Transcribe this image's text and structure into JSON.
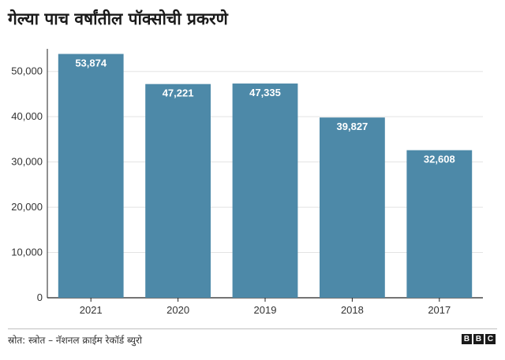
{
  "title": "गेल्या पाच वर्षांतील पॉक्सोची प्रकरणे",
  "source": "स्रोत: स्त्रोत – नॅशनल क्राईम रेकॉर्ड ब्युरो",
  "logo": [
    "B",
    "B",
    "C"
  ],
  "colors": {
    "bar": "#4d89a8",
    "grid": "#e3e3e3",
    "axis": "#222222"
  },
  "chart_data": {
    "type": "bar",
    "categories": [
      "2021",
      "2020",
      "2019",
      "2018",
      "2017"
    ],
    "values": [
      53874,
      47221,
      47335,
      39827,
      32608
    ],
    "data_labels": [
      "53,874",
      "47,221",
      "47,335",
      "39,827",
      "32,608"
    ],
    "ylim": [
      0,
      55000
    ],
    "yticks": [
      0,
      10000,
      20000,
      30000,
      40000,
      50000
    ],
    "ytick_labels": [
      "0",
      "10,000",
      "20,000",
      "30,000",
      "40,000",
      "50,000"
    ],
    "grid": true
  }
}
